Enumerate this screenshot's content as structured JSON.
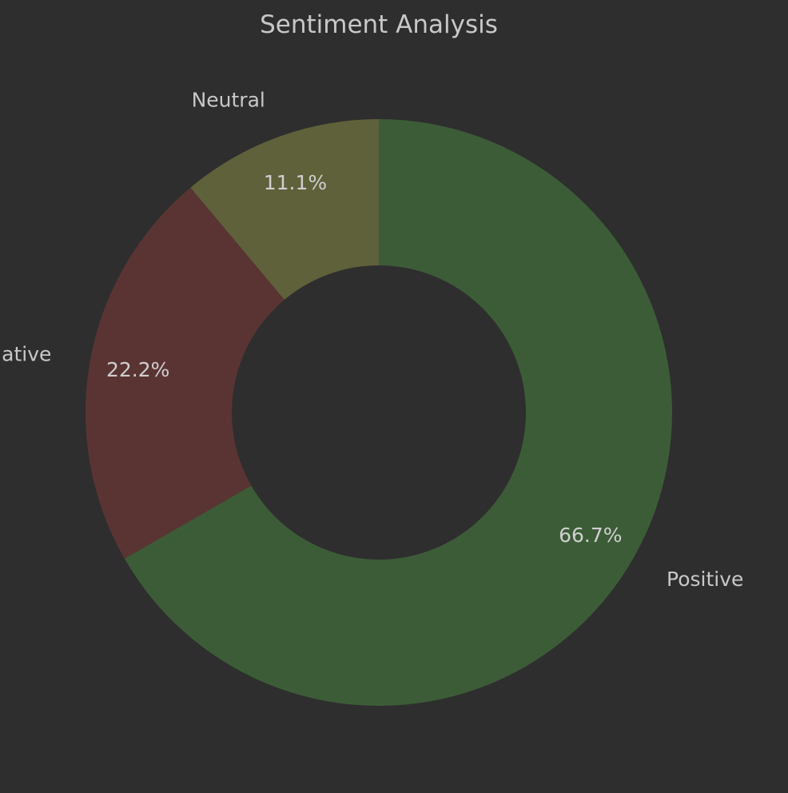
{
  "chart_data": {
    "type": "pie",
    "variant": "donut",
    "title": "Sentiment Analysis",
    "start_angle_deg": 90,
    "direction": "counterclockwise",
    "series": [
      {
        "label": "Neutral",
        "value": 11.1,
        "pct_label": "11.1%",
        "color": "#5f613a"
      },
      {
        "label": "Negative",
        "value": 22.2,
        "pct_label": "22.2%",
        "color": "#5a3433"
      },
      {
        "label": "Positive",
        "value": 66.7,
        "pct_label": "66.7%",
        "color": "#3c5c37"
      }
    ],
    "background_color": "#2e2e2e",
    "text_color": "#c8c8c8"
  }
}
